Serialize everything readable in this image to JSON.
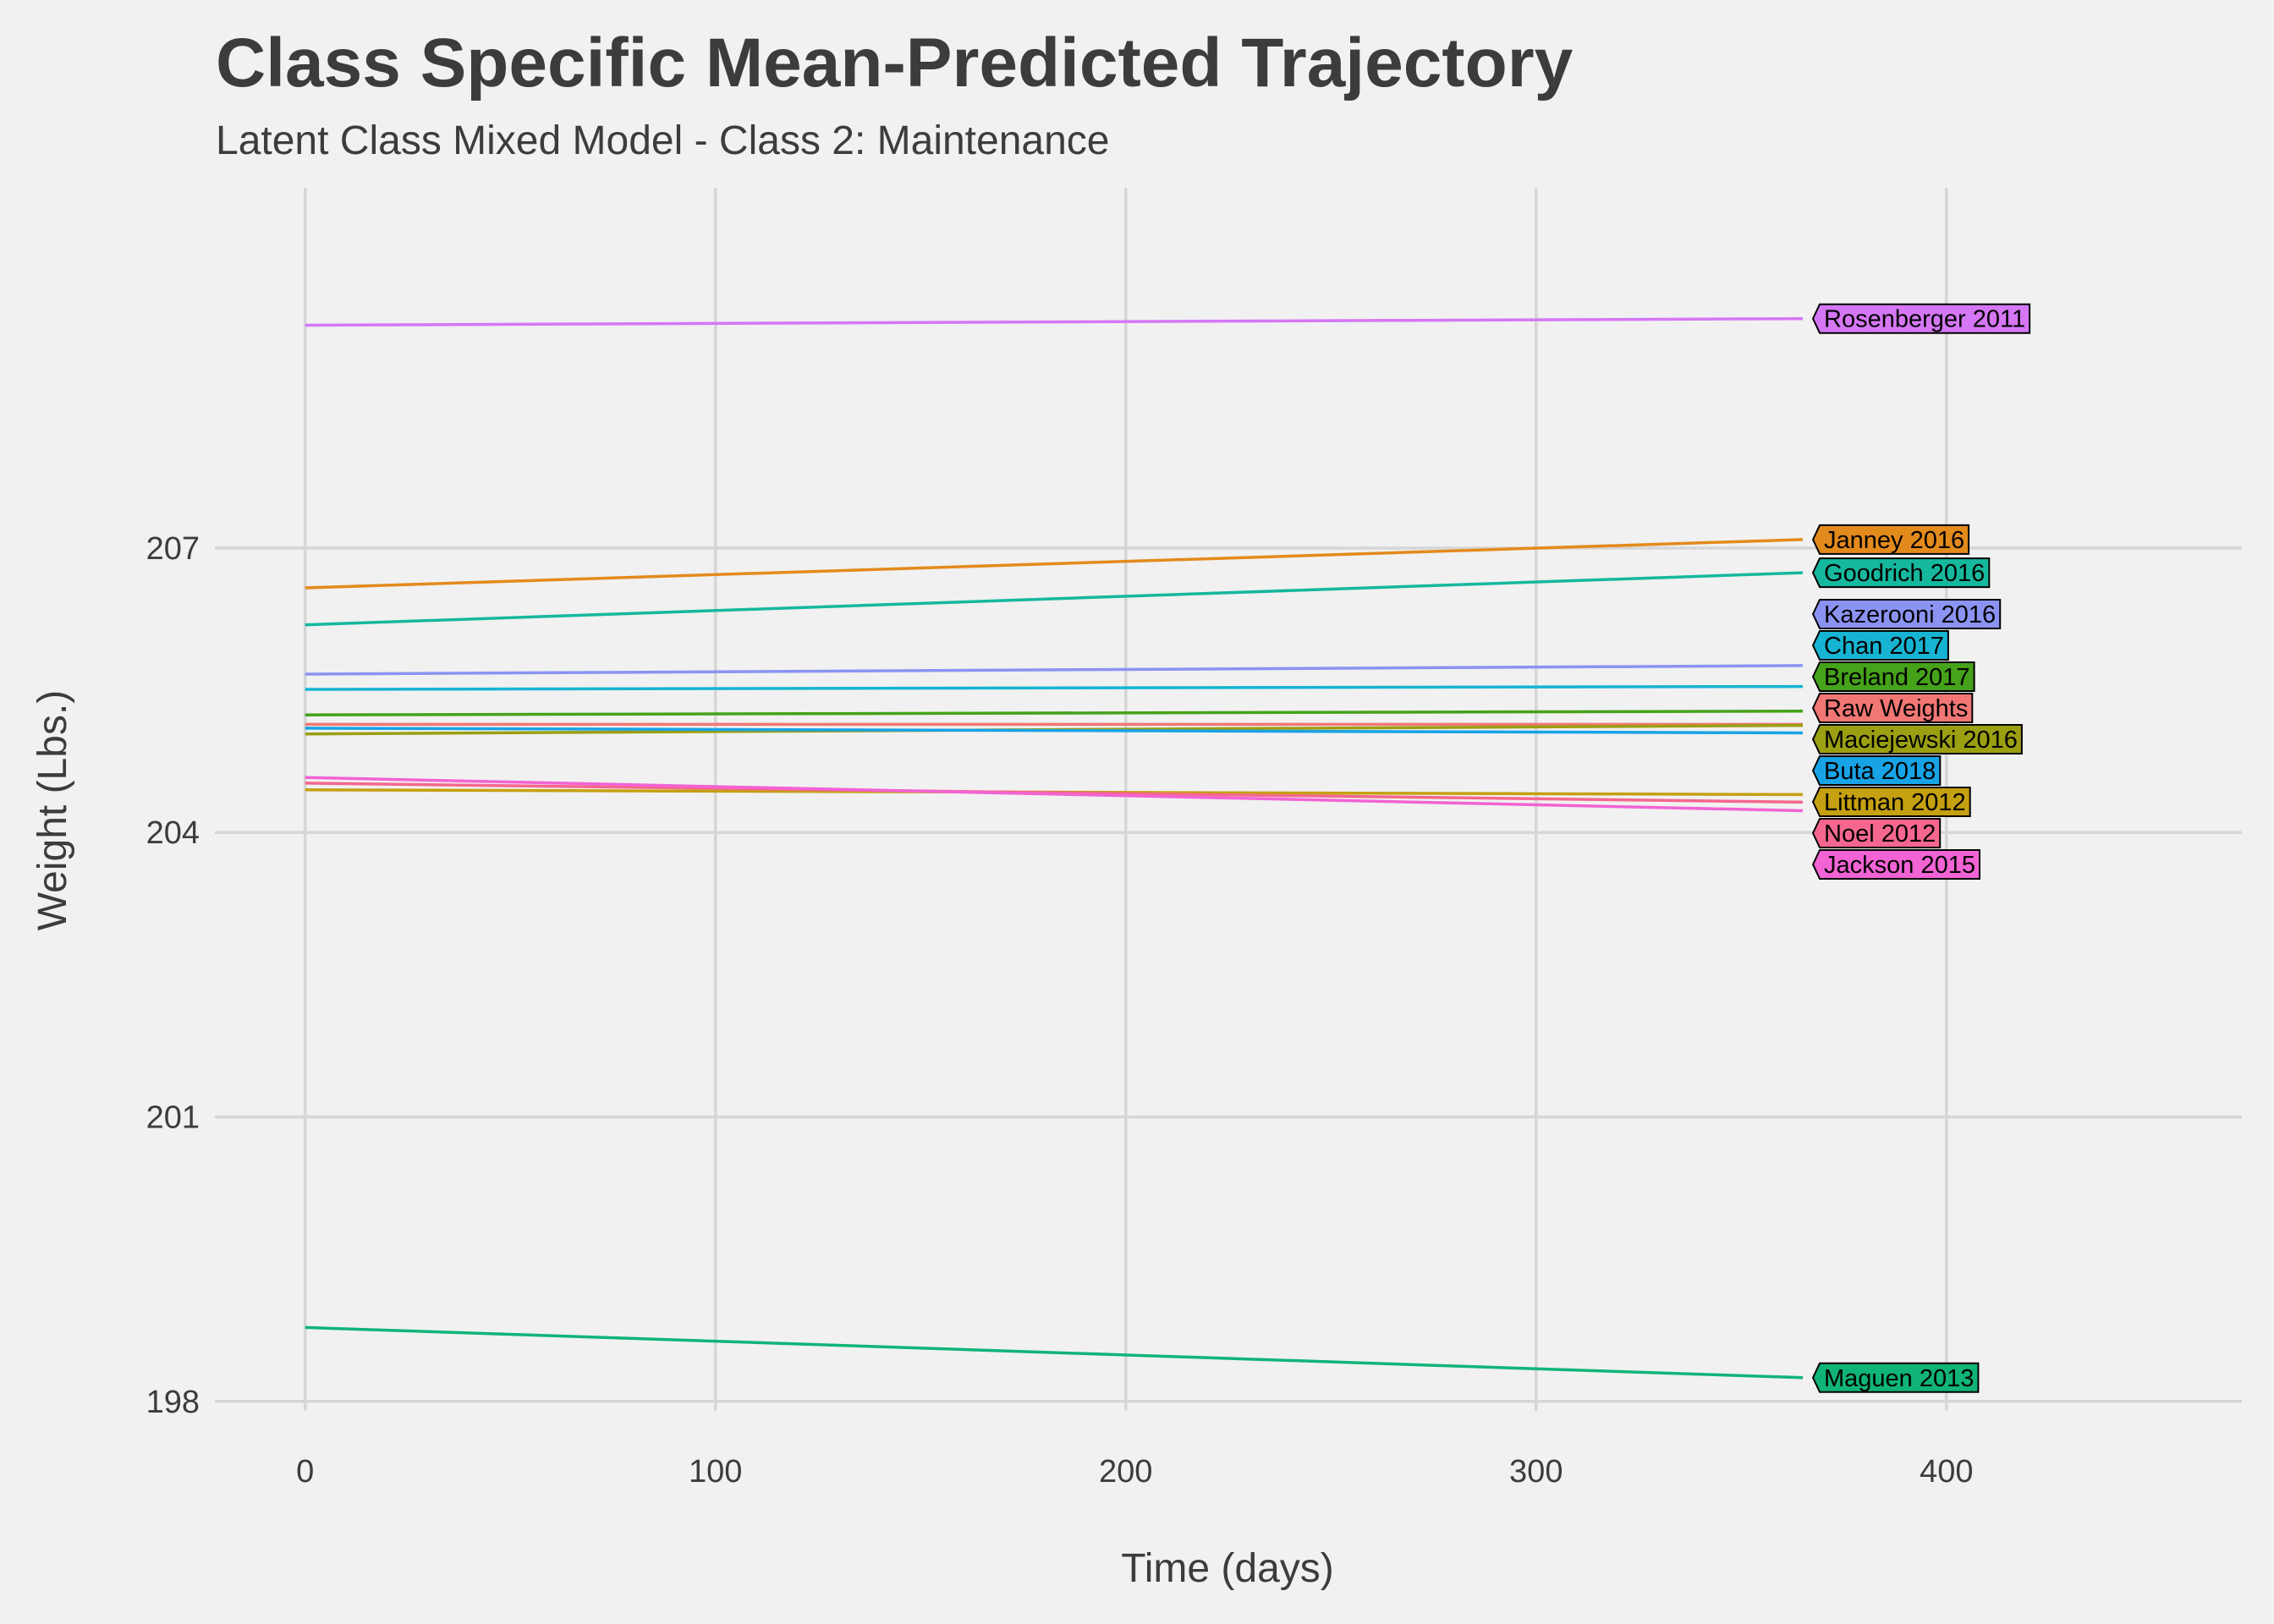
{
  "chart_data": {
    "type": "line",
    "title": "Class Specific Mean-Predicted Trajectory",
    "subtitle": "Latent Class Mixed Model - Class 2: Maintenance",
    "xlabel": "Time (days)",
    "ylabel": "Weight (Lbs.)",
    "xlim": [
      -22,
      472
    ],
    "ylim": [
      197.9,
      210.8
    ],
    "xticks": [
      0,
      100,
      200,
      300,
      400
    ],
    "yticks": [
      198,
      201,
      204,
      207
    ],
    "legend": "direct labels at line ends (right)",
    "grid": true,
    "series": [
      {
        "name": "Rosenberger 2011",
        "x": [
          0,
          365
        ],
        "values": [
          209.35,
          209.42
        ],
        "color": "#d577f5"
      },
      {
        "name": "Janney 2016",
        "x": [
          0,
          365
        ],
        "values": [
          206.58,
          207.09
        ],
        "color": "#e38a1c"
      },
      {
        "name": "Goodrich 2016",
        "x": [
          0,
          365
        ],
        "values": [
          206.19,
          206.74
        ],
        "color": "#16b89d"
      },
      {
        "name": "Kazerooni 2016",
        "x": [
          0,
          365
        ],
        "values": [
          205.67,
          205.76
        ],
        "color": "#8b93f2"
      },
      {
        "name": "Chan 2017",
        "x": [
          0,
          365
        ],
        "values": [
          205.51,
          205.54
        ],
        "color": "#16b4d2"
      },
      {
        "name": "Breland 2017",
        "x": [
          0,
          365
        ],
        "values": [
          205.24,
          205.28
        ],
        "color": "#45a21a"
      },
      {
        "name": "Raw Weights",
        "x": [
          0,
          365
        ],
        "values": [
          205.14,
          205.14
        ],
        "color": "#f17774"
      },
      {
        "name": "Maciejewski 2016",
        "x": [
          0,
          365
        ],
        "values": [
          205.04,
          205.13
        ],
        "color": "#9b9f12"
      },
      {
        "name": "Buta 2018",
        "x": [
          0,
          365
        ],
        "values": [
          205.1,
          205.05
        ],
        "color": "#18a3e6"
      },
      {
        "name": "Littman 2012",
        "x": [
          0,
          365
        ],
        "values": [
          204.45,
          204.4
        ],
        "color": "#c5a011"
      },
      {
        "name": "Noel 2012",
        "x": [
          0,
          365
        ],
        "values": [
          204.52,
          204.32
        ],
        "color": "#f5678e"
      },
      {
        "name": "Jackson 2015",
        "x": [
          0,
          365
        ],
        "values": [
          204.58,
          204.23
        ],
        "color": "#f263d4"
      },
      {
        "name": "Maguen 2013",
        "x": [
          0,
          365
        ],
        "values": [
          198.78,
          198.25
        ],
        "color": "#10b477"
      }
    ]
  }
}
